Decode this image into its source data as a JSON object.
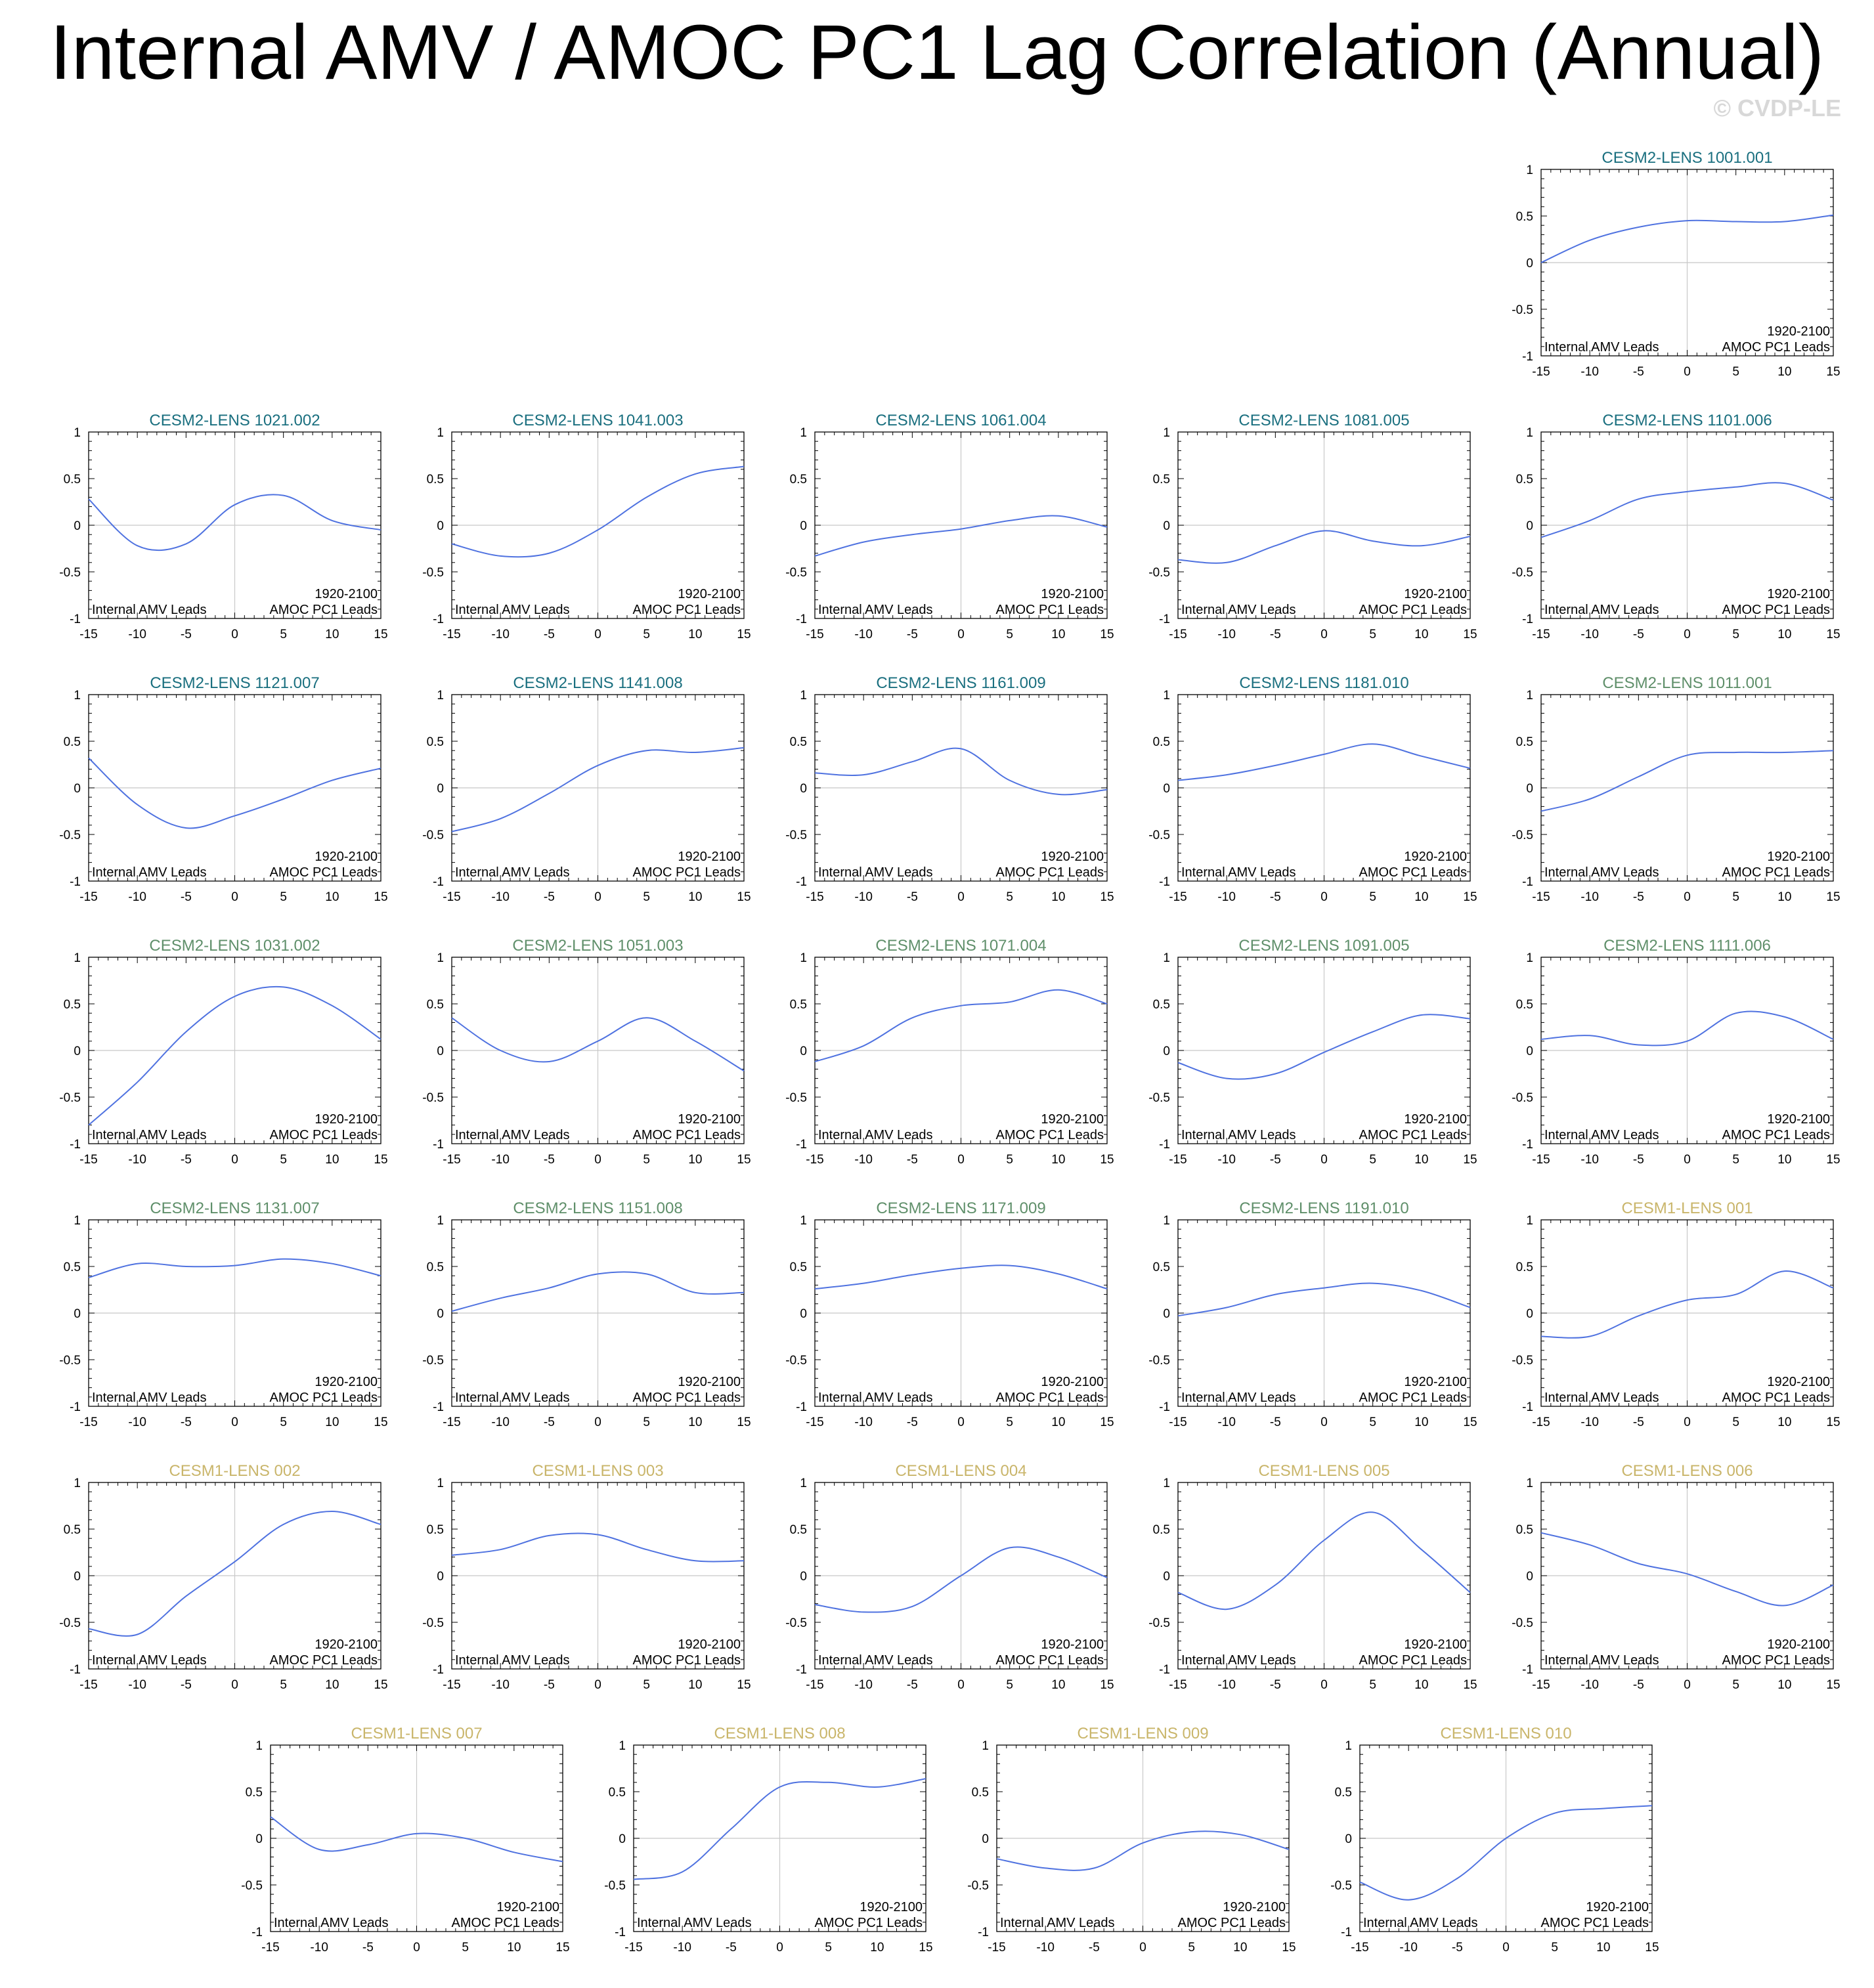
{
  "title": "Internal AMV / AMOC PC1 Lag Correlation (Annual)",
  "watermark": "© CVDP-LE",
  "colors": {
    "cesm2_cmip6": "#1a6f7f",
    "cesm2_smbb": "#5f8f6a",
    "cesm1": "#c9b56a",
    "line": "#4f72e0",
    "zero_line": "#c8c8c8",
    "axis": "#000000"
  },
  "panel_labels": {
    "left_bottom": "Internal AMV Leads",
    "right_bottom": "AMOC PC1 Leads",
    "period": "1920-2100"
  },
  "chart_data": {
    "type": "line",
    "x": [
      -15,
      -10,
      -5,
      0,
      5,
      10,
      15
    ],
    "xlim": [
      -15,
      15
    ],
    "ylim": [
      -1,
      1
    ],
    "xticks": [
      -15,
      -10,
      -5,
      0,
      5,
      10,
      15
    ],
    "yticks": [
      1,
      0.5,
      0,
      -0.5,
      -1
    ],
    "xtick_labels": [
      "-15",
      "-10",
      "-5",
      "0",
      "5",
      "10",
      "15"
    ],
    "ytick_labels": [
      "1",
      "0.5",
      "0",
      "-0.5",
      "-1"
    ],
    "panels": [
      {
        "title": "CESM2-LENS 1001.001",
        "group": "cesm2_cmip6",
        "values": [
          0.0,
          0.24,
          0.38,
          0.45,
          0.44,
          0.44,
          0.51
        ]
      },
      {
        "title": "CESM2-LENS 1021.002",
        "group": "cesm2_cmip6",
        "values": [
          0.28,
          -0.22,
          -0.2,
          0.22,
          0.32,
          0.05,
          -0.05
        ]
      },
      {
        "title": "CESM2-LENS 1041.003",
        "group": "cesm2_cmip6",
        "values": [
          -0.2,
          -0.33,
          -0.3,
          -0.05,
          0.3,
          0.55,
          0.63
        ]
      },
      {
        "title": "CESM2-LENS 1061.004",
        "group": "cesm2_cmip6",
        "values": [
          -0.33,
          -0.18,
          -0.1,
          -0.04,
          0.05,
          0.1,
          -0.02
        ]
      },
      {
        "title": "CESM2-LENS 1081.005",
        "group": "cesm2_cmip6",
        "values": [
          -0.37,
          -0.4,
          -0.22,
          -0.06,
          -0.17,
          -0.22,
          -0.12
        ]
      },
      {
        "title": "CESM2-LENS 1101.006",
        "group": "cesm2_cmip6",
        "values": [
          -0.13,
          0.05,
          0.28,
          0.36,
          0.41,
          0.45,
          0.27
        ]
      },
      {
        "title": "CESM2-LENS 1121.007",
        "group": "cesm2_cmip6",
        "values": [
          0.32,
          -0.18,
          -0.43,
          -0.3,
          -0.12,
          0.08,
          0.21
        ]
      },
      {
        "title": "CESM2-LENS 1141.008",
        "group": "cesm2_cmip6",
        "values": [
          -0.47,
          -0.33,
          -0.06,
          0.24,
          0.4,
          0.38,
          0.43
        ]
      },
      {
        "title": "CESM2-LENS 1161.009",
        "group": "cesm2_cmip6",
        "values": [
          0.16,
          0.14,
          0.28,
          0.42,
          0.08,
          -0.07,
          -0.02
        ]
      },
      {
        "title": "CESM2-LENS 1181.010",
        "group": "cesm2_cmip6",
        "values": [
          0.08,
          0.14,
          0.24,
          0.36,
          0.47,
          0.34,
          0.21
        ]
      },
      {
        "title": "CESM2-LENS 1011.001",
        "group": "cesm2_smbb",
        "values": [
          -0.25,
          -0.12,
          0.12,
          0.35,
          0.38,
          0.38,
          0.4
        ]
      },
      {
        "title": "CESM2-LENS 1031.002",
        "group": "cesm2_smbb",
        "values": [
          -0.8,
          -0.34,
          0.2,
          0.58,
          0.68,
          0.48,
          0.12
        ]
      },
      {
        "title": "CESM2-LENS 1051.003",
        "group": "cesm2_smbb",
        "values": [
          0.35,
          0.0,
          -0.12,
          0.1,
          0.35,
          0.1,
          -0.22
        ]
      },
      {
        "title": "CESM2-LENS 1071.004",
        "group": "cesm2_smbb",
        "values": [
          -0.12,
          0.05,
          0.35,
          0.48,
          0.52,
          0.65,
          0.5
        ]
      },
      {
        "title": "CESM2-LENS 1091.005",
        "group": "cesm2_smbb",
        "values": [
          -0.13,
          -0.3,
          -0.25,
          -0.02,
          0.2,
          0.38,
          0.34
        ]
      },
      {
        "title": "CESM2-LENS 1111.006",
        "group": "cesm2_smbb",
        "values": [
          0.12,
          0.16,
          0.06,
          0.1,
          0.4,
          0.36,
          0.12
        ]
      },
      {
        "title": "CESM2-LENS 1131.007",
        "group": "cesm2_smbb",
        "values": [
          0.38,
          0.53,
          0.5,
          0.51,
          0.58,
          0.53,
          0.4
        ]
      },
      {
        "title": "CESM2-LENS 1151.008",
        "group": "cesm2_smbb",
        "values": [
          0.02,
          0.16,
          0.27,
          0.42,
          0.42,
          0.22,
          0.22
        ]
      },
      {
        "title": "CESM2-LENS 1171.009",
        "group": "cesm2_smbb",
        "values": [
          0.26,
          0.32,
          0.41,
          0.48,
          0.51,
          0.42,
          0.26
        ]
      },
      {
        "title": "CESM2-LENS 1191.010",
        "group": "cesm2_smbb",
        "values": [
          -0.03,
          0.06,
          0.2,
          0.27,
          0.32,
          0.24,
          0.06
        ]
      },
      {
        "title": "CESM1-LENS 001",
        "group": "cesm1",
        "values": [
          -0.25,
          -0.25,
          -0.03,
          0.14,
          0.2,
          0.45,
          0.27
        ]
      },
      {
        "title": "CESM1-LENS 002",
        "group": "cesm1",
        "values": [
          -0.57,
          -0.63,
          -0.22,
          0.15,
          0.55,
          0.69,
          0.55
        ]
      },
      {
        "title": "CESM1-LENS 003",
        "group": "cesm1",
        "values": [
          0.22,
          0.28,
          0.43,
          0.44,
          0.28,
          0.16,
          0.16
        ]
      },
      {
        "title": "CESM1-LENS 004",
        "group": "cesm1",
        "values": [
          -0.31,
          -0.39,
          -0.33,
          0.0,
          0.3,
          0.2,
          -0.02
        ]
      },
      {
        "title": "CESM1-LENS 005",
        "group": "cesm1",
        "values": [
          -0.18,
          -0.36,
          -0.1,
          0.38,
          0.68,
          0.28,
          -0.18
        ]
      },
      {
        "title": "CESM1-LENS 006",
        "group": "cesm1",
        "values": [
          0.46,
          0.33,
          0.13,
          0.02,
          -0.17,
          -0.32,
          -0.1
        ]
      },
      {
        "title": "CESM1-LENS 007",
        "group": "cesm1",
        "values": [
          0.23,
          -0.12,
          -0.07,
          0.05,
          0.0,
          -0.15,
          -0.25
        ]
      },
      {
        "title": "CESM1-LENS 008",
        "group": "cesm1",
        "values": [
          -0.44,
          -0.36,
          0.1,
          0.55,
          0.6,
          0.55,
          0.64
        ]
      },
      {
        "title": "CESM1-LENS 009",
        "group": "cesm1",
        "values": [
          -0.22,
          -0.32,
          -0.32,
          -0.05,
          0.07,
          0.04,
          -0.12
        ]
      },
      {
        "title": "CESM1-LENS 010",
        "group": "cesm1",
        "values": [
          -0.47,
          -0.66,
          -0.43,
          0.0,
          0.27,
          0.32,
          0.35
        ]
      }
    ]
  }
}
